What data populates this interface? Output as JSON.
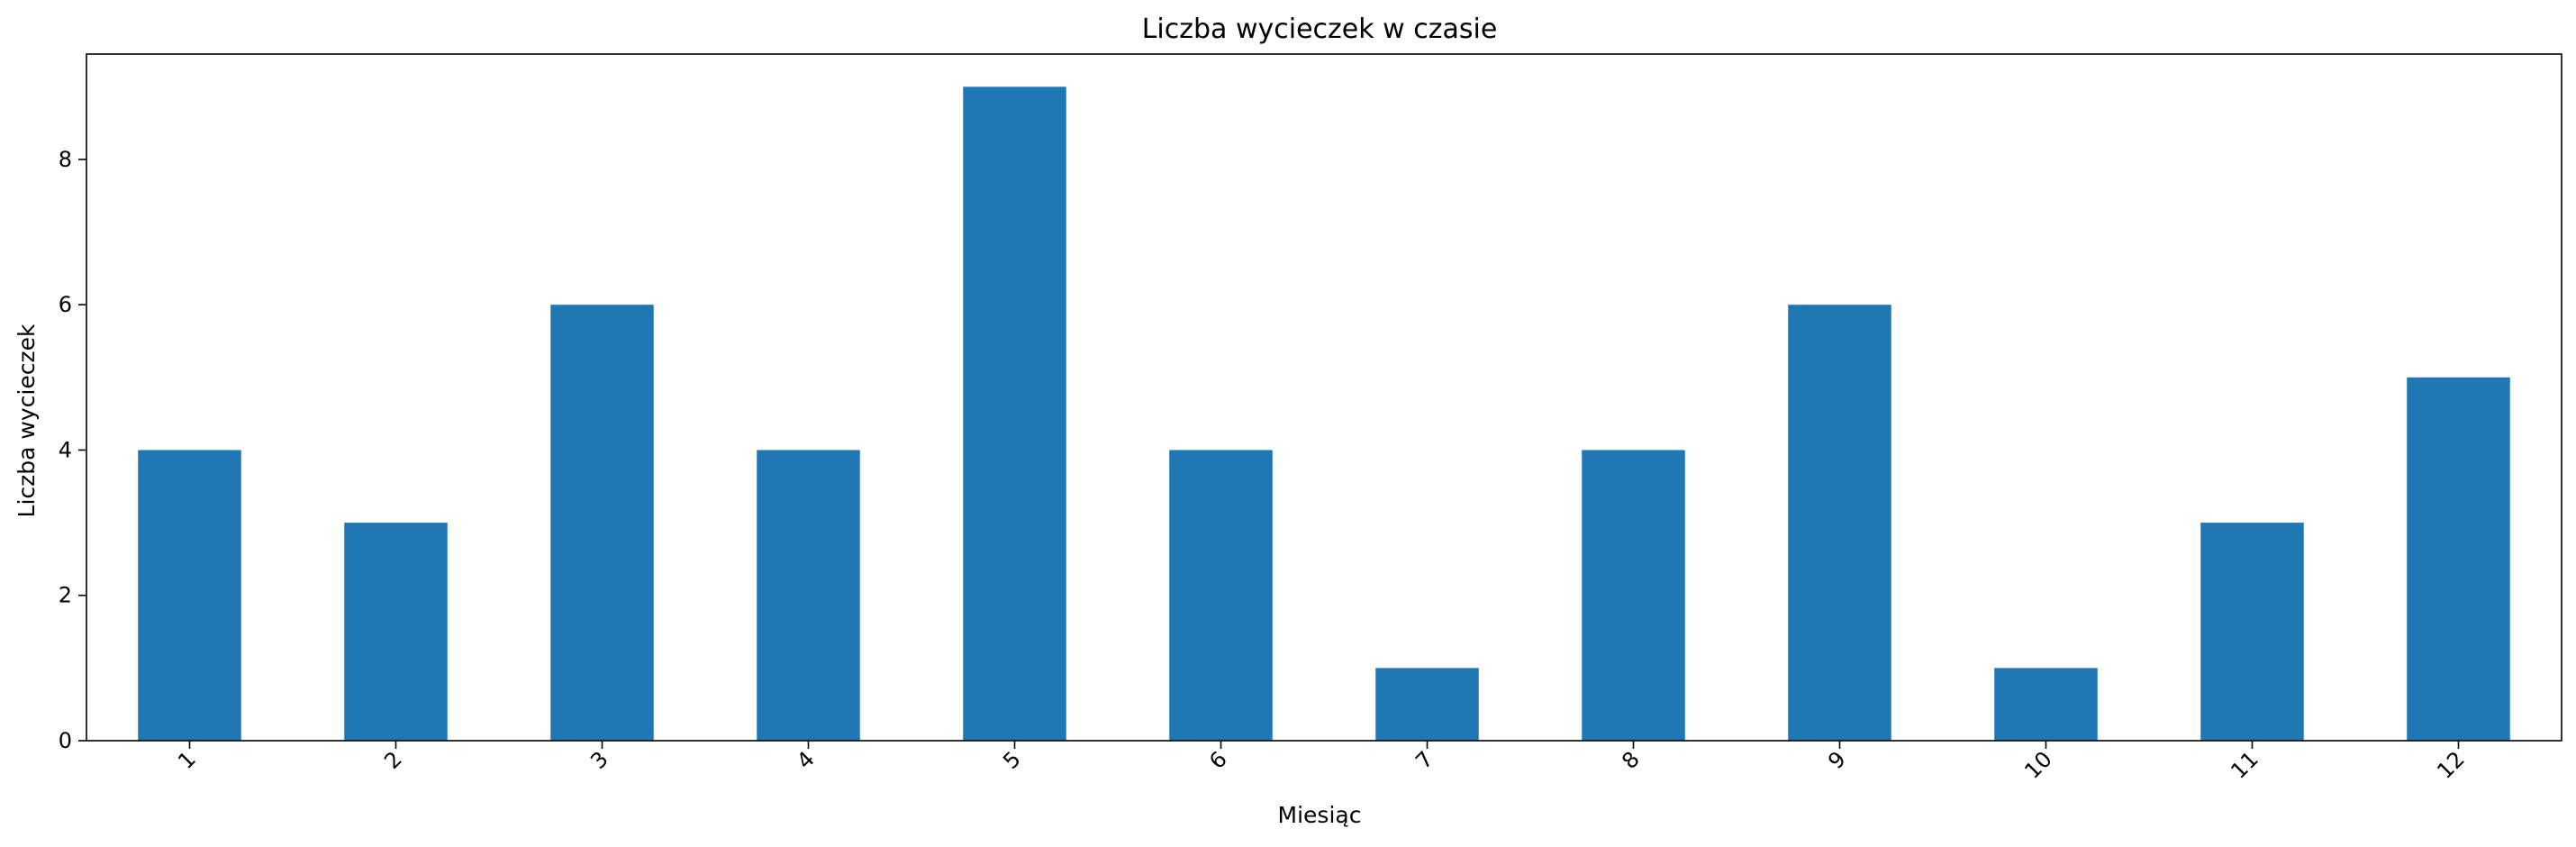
{
  "chart_data": {
    "type": "bar",
    "title": "Liczba wycieczek w czasie",
    "xlabel": "Miesiąc",
    "ylabel": "Liczba wycieczek",
    "categories": [
      "1",
      "2",
      "3",
      "4",
      "5",
      "6",
      "7",
      "8",
      "9",
      "10",
      "11",
      "12"
    ],
    "values": [
      4,
      3,
      6,
      4,
      9,
      4,
      1,
      4,
      6,
      1,
      3,
      5
    ],
    "ylim": [
      0,
      9.45
    ],
    "yticks": [
      0,
      2,
      4,
      6,
      8
    ],
    "grid": false,
    "legend": "none",
    "bar_color": "#1f77b4",
    "x_tick_rotation_deg": 45
  }
}
